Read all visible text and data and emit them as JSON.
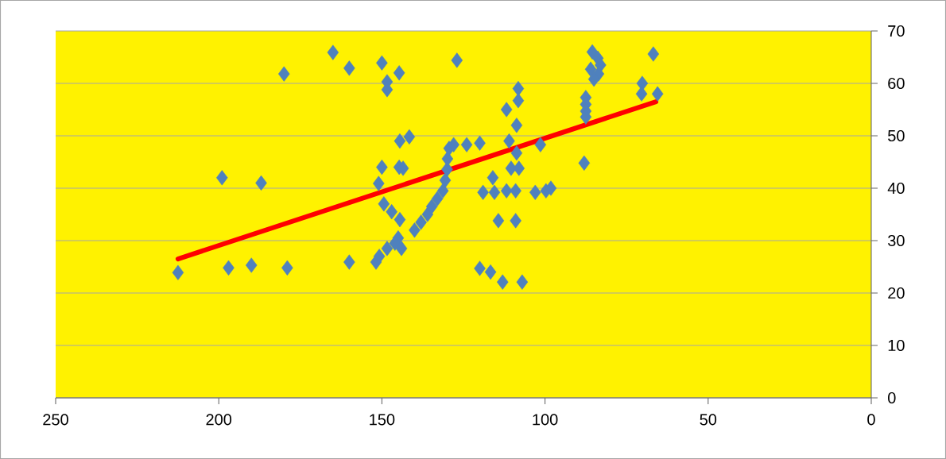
{
  "chart_data": {
    "type": "scatter",
    "xlim": [
      250,
      0
    ],
    "ylim": [
      0,
      70
    ],
    "xticks": [
      250,
      200,
      150,
      100,
      50,
      0
    ],
    "yticks": [
      0,
      10,
      20,
      30,
      40,
      50,
      60,
      70
    ],
    "grid": "y",
    "series": [
      {
        "color": "#4f81bd",
        "marker": "diamond",
        "x": [
          212.5,
          197,
          190,
          179,
          199,
          187,
          180,
          165,
          160,
          160,
          150,
          148.4,
          148.4,
          150,
          151,
          151.8,
          144.7,
          127,
          144.5,
          141.6,
          144.7,
          143.5,
          149.4,
          147,
          144.5,
          145,
          146,
          144,
          148.4,
          150.8,
          140,
          138,
          136,
          134.7,
          133,
          131.3,
          130.6,
          130,
          129.9,
          129.4,
          128,
          124,
          120,
          119,
          116,
          115.5,
          111.8,
          109,
          111,
          108.7,
          110.4,
          108,
          111.8,
          108.2,
          108.2,
          108.7,
          101.4,
          103,
          99.7,
          98.2,
          114.3,
          109,
          120,
          116.7,
          113,
          107,
          85.5,
          83.8,
          83,
          86,
          83.6,
          85,
          66.8,
          70.2,
          70.4,
          65.5,
          87.5,
          87.5,
          87.5,
          87.5,
          88
        ],
        "values": [
          23.9,
          24.8,
          25.3,
          24.8,
          42,
          41,
          61.8,
          65.9,
          62.9,
          25.9,
          63.9,
          60.3,
          58.8,
          44,
          40.9,
          25.9,
          62,
          64.4,
          49,
          49.8,
          44,
          43.8,
          37,
          35.5,
          34,
          30.5,
          29.5,
          28.5,
          28.5,
          27,
          32,
          33.5,
          35,
          36.5,
          38,
          39.5,
          41.5,
          43.6,
          45.6,
          47.6,
          48.3,
          48.3,
          48.6,
          39.2,
          42,
          39.2,
          39.5,
          39.5,
          49,
          46.7,
          43.8,
          43.8,
          55,
          59,
          56.7,
          52,
          48.3,
          39.2,
          39.5,
          40,
          33.8,
          33.8,
          24.7,
          24,
          22.1,
          22.1,
          66,
          64.8,
          63.5,
          62.7,
          61.8,
          60.8,
          65.6,
          60,
          58,
          58,
          57.3,
          56,
          54.7,
          53.6,
          44.8
        ]
      },
      {
        "type": "line",
        "marker": "none",
        "color": "#ff0000",
        "x": [
          212.5,
          66
        ],
        "values": [
          26.5,
          56.5
        ]
      }
    ]
  }
}
